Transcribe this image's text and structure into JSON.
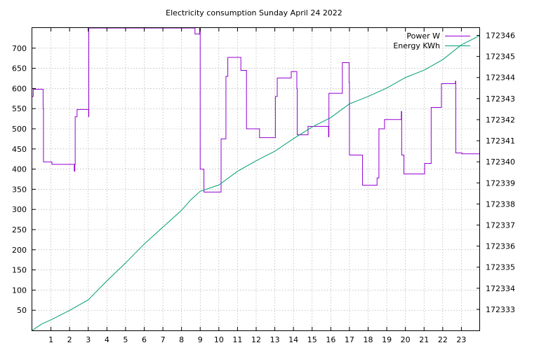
{
  "chart_data": {
    "type": "line",
    "title": "Electricity consumption Sunday April 24 2022",
    "xlabel": "",
    "ylabel": "",
    "y2label": "",
    "xlim": [
      0,
      24
    ],
    "ylim": [
      0,
      750
    ],
    "y2lim": [
      172332,
      172346.35
    ],
    "x_ticks": [
      1,
      2,
      3,
      4,
      5,
      6,
      7,
      8,
      9,
      10,
      11,
      12,
      13,
      14,
      15,
      16,
      17,
      18,
      19,
      20,
      21,
      22,
      23
    ],
    "y_ticks": [
      50,
      100,
      150,
      200,
      250,
      300,
      350,
      400,
      450,
      500,
      550,
      600,
      650,
      700
    ],
    "y2_ticks": [
      172333,
      172334,
      172335,
      172336,
      172337,
      172338,
      172339,
      172340,
      172341,
      172342,
      172343,
      172344,
      172345,
      172346
    ],
    "grid": true,
    "legend_position": "top-right",
    "series": [
      {
        "name": "Power W",
        "axis": "left",
        "color": "#9400d3",
        "step": true,
        "points": [
          [
            0,
            580
          ],
          [
            0.05,
            598
          ],
          [
            0.55,
            598
          ],
          [
            0.58,
            550
          ],
          [
            0.6,
            418
          ],
          [
            1.0,
            418
          ],
          [
            1.05,
            412
          ],
          [
            2.2,
            412
          ],
          [
            2.25,
            395
          ],
          [
            2.28,
            412
          ],
          [
            2.3,
            530
          ],
          [
            2.4,
            548
          ],
          [
            3.0,
            548
          ],
          [
            3.02,
            530
          ],
          [
            3.03,
            750
          ],
          [
            8.7,
            750
          ],
          [
            8.72,
            735
          ],
          [
            8.95,
            735
          ],
          [
            8.97,
            750
          ],
          [
            9.0,
            400
          ],
          [
            9.15,
            400
          ],
          [
            9.2,
            343
          ],
          [
            10.1,
            343
          ],
          [
            10.12,
            475
          ],
          [
            10.35,
            475
          ],
          [
            10.38,
            630
          ],
          [
            10.45,
            630
          ],
          [
            10.48,
            677
          ],
          [
            11.15,
            677
          ],
          [
            11.18,
            645
          ],
          [
            11.45,
            645
          ],
          [
            11.48,
            500
          ],
          [
            12.15,
            500
          ],
          [
            12.18,
            478
          ],
          [
            13.0,
            478
          ],
          [
            13.03,
            580
          ],
          [
            13.1,
            580
          ],
          [
            13.13,
            626
          ],
          [
            13.85,
            626
          ],
          [
            13.88,
            642
          ],
          [
            14.15,
            642
          ],
          [
            14.18,
            600
          ],
          [
            14.2,
            485
          ],
          [
            14.75,
            485
          ],
          [
            14.78,
            506
          ],
          [
            15.85,
            506
          ],
          [
            15.88,
            480
          ],
          [
            15.9,
            588
          ],
          [
            16.6,
            588
          ],
          [
            16.62,
            664
          ],
          [
            16.95,
            664
          ],
          [
            16.98,
            615
          ],
          [
            17.0,
            435
          ],
          [
            17.65,
            435
          ],
          [
            17.7,
            360
          ],
          [
            18.45,
            360
          ],
          [
            18.48,
            378
          ],
          [
            18.55,
            378
          ],
          [
            18.58,
            500
          ],
          [
            18.85,
            500
          ],
          [
            18.88,
            523
          ],
          [
            19.75,
            523
          ],
          [
            19.78,
            543
          ],
          [
            19.8,
            435
          ],
          [
            19.9,
            435
          ],
          [
            19.92,
            388
          ],
          [
            21.0,
            388
          ],
          [
            21.03,
            414
          ],
          [
            21.35,
            414
          ],
          [
            21.38,
            553
          ],
          [
            21.9,
            553
          ],
          [
            21.93,
            612
          ],
          [
            22.65,
            612
          ],
          [
            22.68,
            618
          ],
          [
            22.7,
            440
          ],
          [
            23.0,
            440
          ],
          [
            23.03,
            438
          ],
          [
            24.0,
            438
          ]
        ]
      },
      {
        "name": "Energy KWh",
        "axis": "right",
        "color": "#009e73",
        "step": false,
        "points": [
          [
            0,
            172332.0
          ],
          [
            0.5,
            172332.3
          ],
          [
            1,
            172332.5
          ],
          [
            2,
            172332.95
          ],
          [
            3,
            172333.45
          ],
          [
            4,
            172334.35
          ],
          [
            5,
            172335.2
          ],
          [
            6,
            172336.1
          ],
          [
            7,
            172336.9
          ],
          [
            8,
            172337.7
          ],
          [
            8.5,
            172338.2
          ],
          [
            9,
            172338.6
          ],
          [
            10,
            172338.9
          ],
          [
            11,
            172339.55
          ],
          [
            12,
            172340.05
          ],
          [
            13,
            172340.5
          ],
          [
            14,
            172341.1
          ],
          [
            15,
            172341.65
          ],
          [
            16,
            172342.1
          ],
          [
            17,
            172342.75
          ],
          [
            18,
            172343.1
          ],
          [
            19,
            172343.5
          ],
          [
            20,
            172344.0
          ],
          [
            21,
            172344.35
          ],
          [
            22,
            172344.85
          ],
          [
            23,
            172345.55
          ],
          [
            24,
            172346.0
          ]
        ]
      }
    ]
  }
}
